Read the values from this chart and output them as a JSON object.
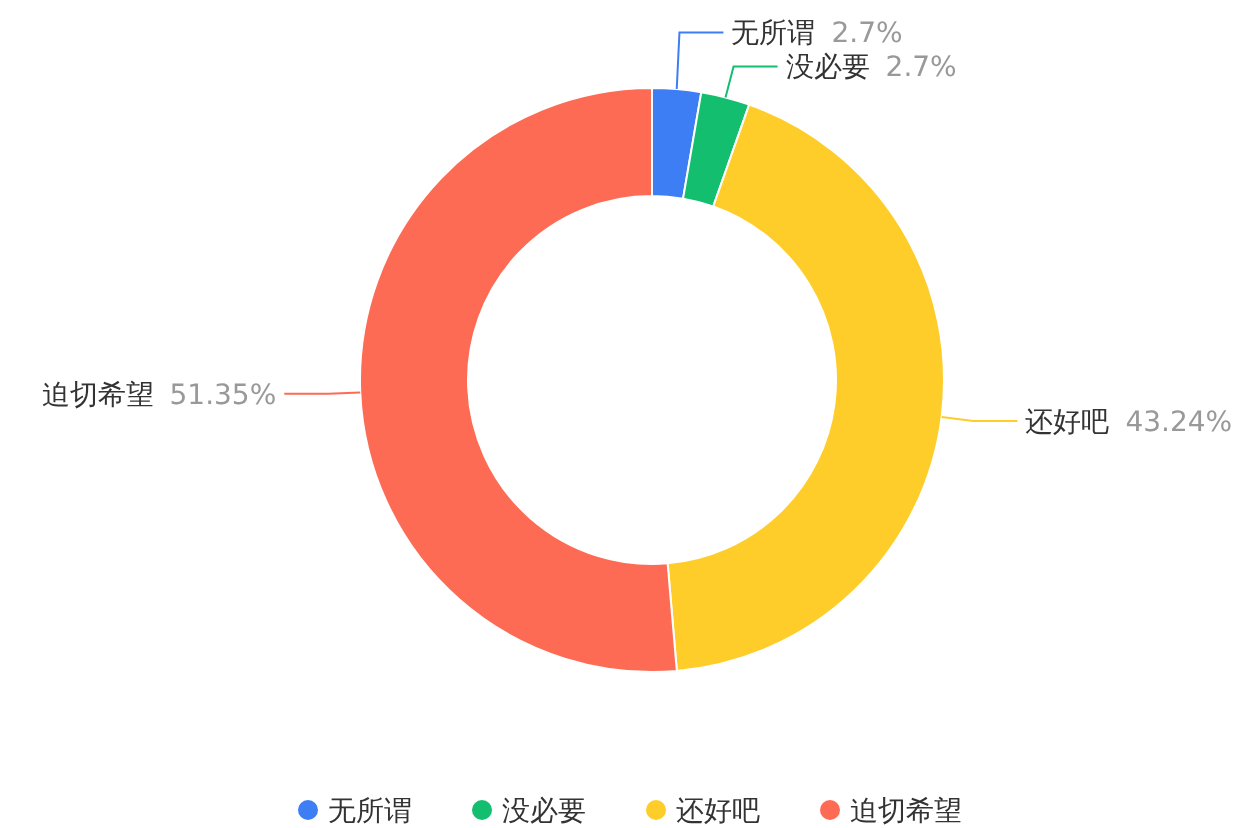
{
  "chart_data": {
    "type": "donut",
    "categories": [
      "无所谓",
      "没必要",
      "还好吧",
      "迫切希望"
    ],
    "values": [
      2.7,
      2.7,
      43.24,
      51.35
    ],
    "colors": [
      "#3d7ef5",
      "#13bf6e",
      "#ffcd29",
      "#fd6b55"
    ],
    "value_labels": [
      "2.7%",
      "2.7%",
      "43.24%",
      "51.35%"
    ],
    "legend": "bottom"
  }
}
